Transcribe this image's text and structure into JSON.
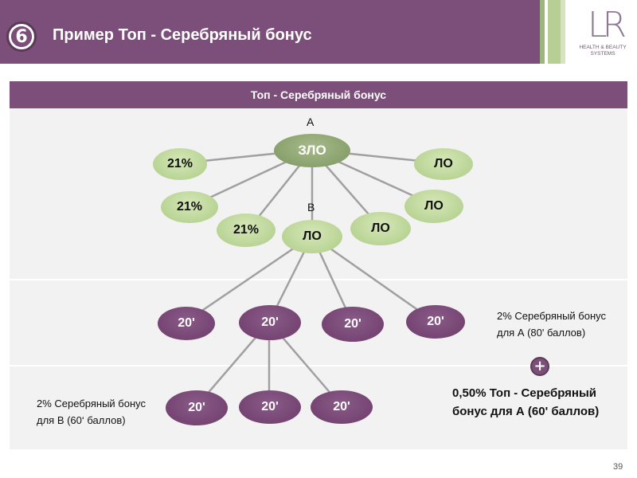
{
  "header": {
    "number": "6",
    "title": "Пример Топ - Серебряный бонус",
    "color": "#7b4f79"
  },
  "brand": {
    "logo": "LR",
    "tagline": "HEALTH & BEAUTY SYSTEMS"
  },
  "panel": {
    "title": "Топ - Серебряный бонус"
  },
  "diagram": {
    "label_a": "A",
    "label_b": "B",
    "top_center": "ЗЛО",
    "top_left": [
      "21%",
      "21%",
      "21%"
    ],
    "top_right": [
      "ЛО",
      "ЛО",
      "ЛО"
    ],
    "b_node": "ЛО",
    "level2": [
      "20'",
      "20'",
      "20'",
      "20'"
    ],
    "level3": [
      "20'",
      "20'",
      "20'"
    ]
  },
  "notes": {
    "bonus_a": [
      "2% Серебряный бонус",
      "для А (80' баллов)"
    ],
    "bonus_b": [
      "2% Серебряный бонус",
      "для В (60‘ баллов)"
    ],
    "top_bonus": [
      "0,50% Топ - Серебряный",
      "бонус для А (60' баллов)"
    ]
  },
  "plus_symbol": "+",
  "page_number": "39"
}
